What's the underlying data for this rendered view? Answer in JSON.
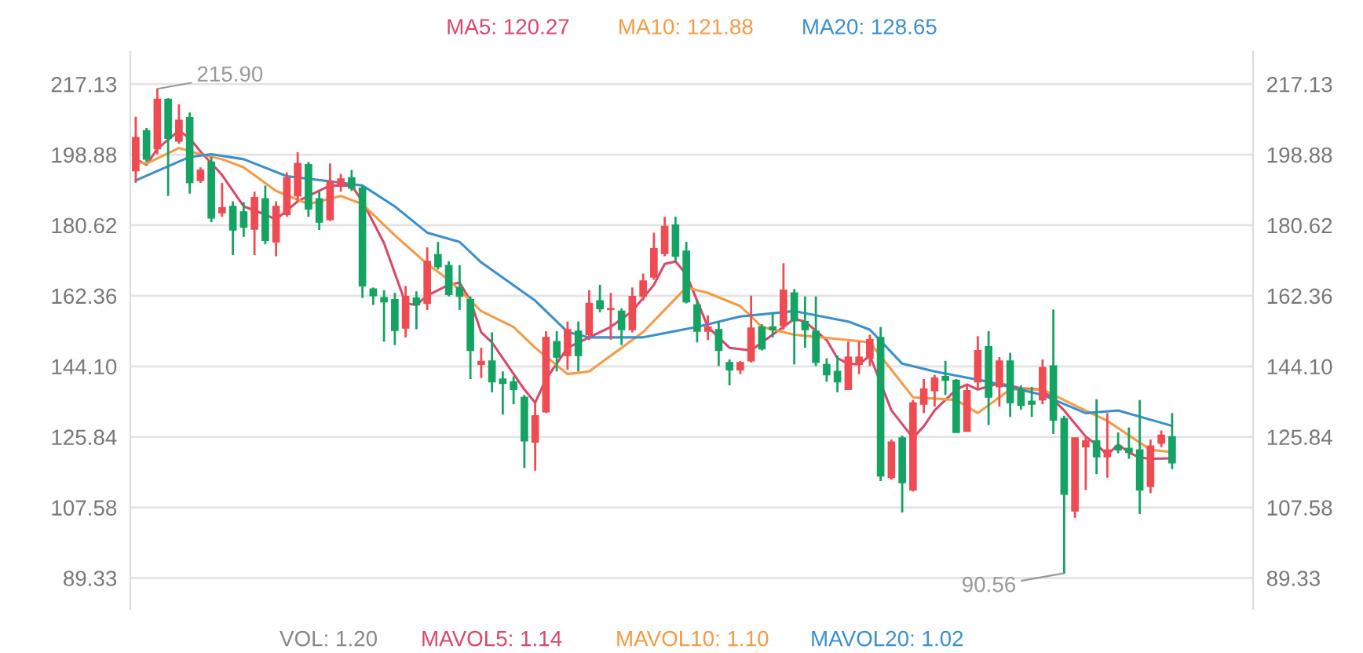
{
  "chart_data": {
    "type": "candlestick",
    "categories": [
      null,
      null,
      null,
      null,
      null,
      null,
      null,
      null,
      null,
      null,
      null,
      null,
      null,
      null,
      null,
      null,
      null,
      null,
      null,
      null,
      null,
      null,
      null,
      null,
      null,
      null,
      null,
      null,
      null,
      null,
      null,
      null,
      null,
      null,
      null,
      null,
      null,
      null,
      null,
      null,
      null,
      null,
      null,
      null,
      null,
      null,
      null,
      null,
      null,
      null,
      null,
      null,
      null,
      null,
      null,
      null,
      null,
      null,
      null,
      null,
      null,
      null,
      null,
      null,
      null,
      null,
      null,
      null,
      null,
      null,
      null,
      null,
      null,
      null,
      null,
      null,
      null,
      null,
      null,
      null,
      null,
      null,
      null,
      null,
      null,
      null,
      null,
      null,
      null,
      null,
      null,
      null,
      null,
      null,
      null,
      null,
      null,
      null,
      null,
      null,
      null,
      null,
      null,
      null
    ],
    "ohlc": [
      [
        194.7,
        208.7,
        191.6,
        203.3
      ],
      [
        205.1,
        205.8,
        197.0,
        197.7
      ],
      [
        200.4,
        215.9,
        199.0,
        213.2
      ],
      [
        213.2,
        213.5,
        188.2,
        203.1
      ],
      [
        202.4,
        211.9,
        201.7,
        207.8
      ],
      [
        208.5,
        209.8,
        188.8,
        191.6
      ],
      [
        192.2,
        195.6,
        191.6,
        194.9
      ],
      [
        197.0,
        198.3,
        181.4,
        182.5
      ],
      [
        183.8,
        191.6,
        182.8,
        185.2
      ],
      [
        185.5,
        186.8,
        172.9,
        179.4
      ],
      [
        184.1,
        186.6,
        177.6,
        180.1
      ],
      [
        179.6,
        189.3,
        172.9,
        187.8
      ],
      [
        187.5,
        190.9,
        175.7,
        176.7
      ],
      [
        176.3,
        186.8,
        172.6,
        185.5
      ],
      [
        183.4,
        194.3,
        182.8,
        192.9
      ],
      [
        188.2,
        199.5,
        186.8,
        196.6
      ],
      [
        196.3,
        197.0,
        182.8,
        184.8
      ],
      [
        187.5,
        189.3,
        179.4,
        181.4
      ],
      [
        182.1,
        196.6,
        181.7,
        192.0
      ],
      [
        190.9,
        193.9,
        189.3,
        192.6
      ],
      [
        192.9,
        194.9,
        189.5,
        190.2
      ],
      [
        190.2,
        190.9,
        161.8,
        164.9
      ],
      [
        164.1,
        164.5,
        160.0,
        162.4
      ],
      [
        161.9,
        163.8,
        150.5,
        160.8
      ],
      [
        161.4,
        163.1,
        149.6,
        153.4
      ],
      [
        154.0,
        164.9,
        151.6,
        162.2
      ],
      [
        161.8,
        163.5,
        153.7,
        160.0
      ],
      [
        160.4,
        174.9,
        158.7,
        171.3
      ],
      [
        173.0,
        176.3,
        169.2,
        169.9
      ],
      [
        170.2,
        171.3,
        162.2,
        162.7
      ],
      [
        164.5,
        170.3,
        158.7,
        162.2
      ],
      [
        161.4,
        162.2,
        140.8,
        148.2
      ],
      [
        144.6,
        148.9,
        141.1,
        145.4
      ],
      [
        145.5,
        152.9,
        137.4,
        140.1
      ],
      [
        140.8,
        142.8,
        131.6,
        139.7
      ],
      [
        140.1,
        141.5,
        134.3,
        138.1
      ],
      [
        136.1,
        136.7,
        117.8,
        124.8
      ],
      [
        124.5,
        134.7,
        117.1,
        131.3
      ],
      [
        132.3,
        153.2,
        132.0,
        151.6
      ],
      [
        150.5,
        153.2,
        142.8,
        146.5
      ],
      [
        146.9,
        155.7,
        143.2,
        153.6
      ],
      [
        153.2,
        155.7,
        142.8,
        146.9
      ],
      [
        152.3,
        163.8,
        150.9,
        160.4
      ],
      [
        161.1,
        165.2,
        158.1,
        159.0
      ],
      [
        158.8,
        163.1,
        151.0,
        159.0
      ],
      [
        158.4,
        159.1,
        149.6,
        153.6
      ],
      [
        153.6,
        164.5,
        152.9,
        162.2
      ],
      [
        162.2,
        168.1,
        161.1,
        166.2
      ],
      [
        167.2,
        178.7,
        166.5,
        174.6
      ],
      [
        173.3,
        182.8,
        172.6,
        180.3
      ],
      [
        180.7,
        182.8,
        171.2,
        172.6
      ],
      [
        173.9,
        176.3,
        160.4,
        160.8
      ],
      [
        160.0,
        161.1,
        150.3,
        153.2
      ],
      [
        153.2,
        157.3,
        150.9,
        154.3
      ],
      [
        153.6,
        155.7,
        144.2,
        148.2
      ],
      [
        145.1,
        145.9,
        139.2,
        143.2
      ],
      [
        143.2,
        145.5,
        142.1,
        145.1
      ],
      [
        145.5,
        162.4,
        145.1,
        154.0
      ],
      [
        154.3,
        155.0,
        148.2,
        148.6
      ],
      [
        154.3,
        158.1,
        151.6,
        153.6
      ],
      [
        154.6,
        170.8,
        153.6,
        163.8
      ],
      [
        163.1,
        164.1,
        144.6,
        155.9
      ],
      [
        155.7,
        162.2,
        148.9,
        153.6
      ],
      [
        153.2,
        162.2,
        144.2,
        145.1
      ],
      [
        144.6,
        146.2,
        140.1,
        141.9
      ],
      [
        142.8,
        146.9,
        137.4,
        140.1
      ],
      [
        138.1,
        150.5,
        138.1,
        146.5
      ],
      [
        144.6,
        150.5,
        142.1,
        146.5
      ],
      [
        146.2,
        152.3,
        144.2,
        151.0
      ],
      [
        151.6,
        154.3,
        114.4,
        115.7
      ],
      [
        115.3,
        125.2,
        114.8,
        124.5
      ],
      [
        125.6,
        126.2,
        106.3,
        114.0
      ],
      [
        112.1,
        135.4,
        111.7,
        134.7
      ],
      [
        134.3,
        140.8,
        132.0,
        138.3
      ],
      [
        137.8,
        141.9,
        133.7,
        141.1
      ],
      [
        141.5,
        145.5,
        136.7,
        140.5
      ],
      [
        140.5,
        140.8,
        127.0,
        127.0
      ],
      [
        127.3,
        139.2,
        127.3,
        137.8
      ],
      [
        140.1,
        151.9,
        138.1,
        148.2
      ],
      [
        149.2,
        153.2,
        128.9,
        136.1
      ],
      [
        138.8,
        146.5,
        133.7,
        145.5
      ],
      [
        145.5,
        147.6,
        131.0,
        134.7
      ],
      [
        138.1,
        139.2,
        132.9,
        134.0
      ],
      [
        135.1,
        138.8,
        131.0,
        134.3
      ],
      [
        135.4,
        145.9,
        134.3,
        143.8
      ],
      [
        144.2,
        158.8,
        126.6,
        130.2
      ],
      [
        130.6,
        131.3,
        90.56,
        111.0
      ],
      [
        106.7,
        125.6,
        104.9,
        125.6
      ],
      [
        123.3,
        125.6,
        112.1,
        124.8
      ],
      [
        124.8,
        135.6,
        116.2,
        120.7
      ],
      [
        120.7,
        132.0,
        115.3,
        122.5
      ],
      [
        123.5,
        127.0,
        121.6,
        122.5
      ],
      [
        122.9,
        128.3,
        120.2,
        121.8
      ],
      [
        122.5,
        135.4,
        105.9,
        112.1
      ],
      [
        113.0,
        125.2,
        111.3,
        123.5
      ],
      [
        124.2,
        127.5,
        123.2,
        126.3
      ],
      [
        125.9,
        132.0,
        117.5,
        119.1
      ],
      null,
      null,
      null,
      null,
      null,
      null,
      null
    ],
    "series": [
      {
        "name": "MA5: 120.27",
        "type": "line",
        "color": "#d9476a",
        "values": [
          197.7,
          196.3,
          200.4,
          null,
          205.1,
          203.1,
          199.7,
          null,
          193.6,
          null,
          185.5,
          null,
          183.4,
          182.1,
          null,
          186.8,
          188.2,
          null,
          190.9,
          null,
          190.9,
          186.8,
          null,
          176.0,
          null,
          160.4,
          160.0,
          162.4,
          null,
          165.2,
          165.8,
          161.1,
          152.9,
          150.3,
          null,
          null,
          138.1,
          134.7,
          140.8,
          null,
          148.9,
          null,
          151.6,
          null,
          154.3,
          null,
          158.4,
          null,
          165.2,
          170.6,
          171.2,
          167.9,
          null,
          154.3,
          null,
          148.9,
          null,
          148.2,
          150.3,
          null,
          154.3,
          156.4,
          155.7,
          null,
          150.9,
          146.2,
          144.8,
          144.6,
          146.9,
          null,
          132.7,
          null,
          125.6,
          128.6,
          132.7,
          null,
          138.1,
          139.4,
          138.1,
          null,
          139.7,
          null,
          138.4,
          null,
          138.1,
          135.4,
          132.7,
          129.3,
          125.9,
          123.9,
          121.2,
          123.9,
          121.8,
          120.5,
          120.2,
          null,
          120.3,
          null,
          null,
          null,
          null,
          null,
          null,
          null
        ]
      },
      {
        "name": "MA10: 121.88",
        "type": "line",
        "color": "#f59a45",
        "values": [
          197.0,
          196.6,
          null,
          null,
          200.6,
          null,
          199.0,
          null,
          197.7,
          null,
          195.6,
          null,
          null,
          189.5,
          null,
          null,
          186.1,
          null,
          null,
          188.2,
          null,
          186.1,
          null,
          null,
          178.0,
          null,
          null,
          170.6,
          null,
          166.5,
          null,
          161.1,
          158.4,
          null,
          null,
          154.3,
          null,
          148.9,
          null,
          null,
          142.1,
          null,
          142.8,
          null,
          null,
          148.9,
          null,
          153.0,
          null,
          null,
          null,
          164.5,
          null,
          163.1,
          null,
          null,
          159.7,
          null,
          154.3,
          null,
          null,
          152.3,
          null,
          null,
          null,
          null,
          150.9,
          null,
          150.3,
          null,
          null,
          null,
          136.1,
          null,
          null,
          null,
          135.4,
          null,
          132.0,
          null,
          null,
          138.1,
          null,
          null,
          138.1,
          null,
          null,
          134.0,
          null,
          null,
          130.0,
          null,
          null,
          null,
          122.5,
          null,
          121.9,
          null,
          null,
          null,
          null,
          null,
          null,
          null
        ]
      },
      {
        "name": "MA20: 128.65",
        "type": "line",
        "color": "#3b8fcc",
        "values": [
          192.2,
          null,
          null,
          null,
          null,
          198.3,
          null,
          199.0,
          null,
          null,
          197.7,
          null,
          null,
          null,
          193.3,
          null,
          null,
          null,
          192.0,
          null,
          null,
          190.9,
          null,
          null,
          185.5,
          null,
          null,
          178.7,
          null,
          null,
          176.3,
          null,
          171.0,
          null,
          null,
          null,
          null,
          161.1,
          null,
          null,
          153.0,
          null,
          151.6,
          null,
          null,
          null,
          null,
          151.6,
          null,
          null,
          null,
          null,
          154.3,
          null,
          null,
          null,
          157.0,
          null,
          null,
          null,
          null,
          158.4,
          null,
          null,
          null,
          null,
          155.7,
          null,
          153.6,
          null,
          null,
          144.8,
          null,
          null,
          142.8,
          null,
          null,
          null,
          null,
          140.1,
          null,
          null,
          null,
          null,
          136.7,
          null,
          null,
          null,
          132.0,
          null,
          null,
          132.7,
          null,
          null,
          null,
          null,
          128.7,
          null,
          null,
          null,
          null,
          null,
          null,
          null
        ]
      }
    ],
    "ylim": [
      81.3,
      225.5
    ],
    "yticks": [
      89.33,
      107.58,
      125.84,
      {
        "value": 144.1,
        "label": "144.10"
      },
      162.36,
      180.62,
      198.88,
      217.13
    ],
    "y2lim": [
      81.3,
      225.5
    ],
    "y2ticks": [
      89.33,
      107.58,
      125.84,
      {
        "value": 144.1,
        "label": "144.10"
      },
      162.36,
      180.62,
      198.88,
      217.13
    ],
    "grid": "y",
    "legend": "top",
    "annotations": [
      "215.90",
      "90.56",
      "VOL: 1.20",
      "MAVOL5: 1.14",
      "MAVOL10: 1.10",
      "MAVOL20: 1.02"
    ]
  }
}
